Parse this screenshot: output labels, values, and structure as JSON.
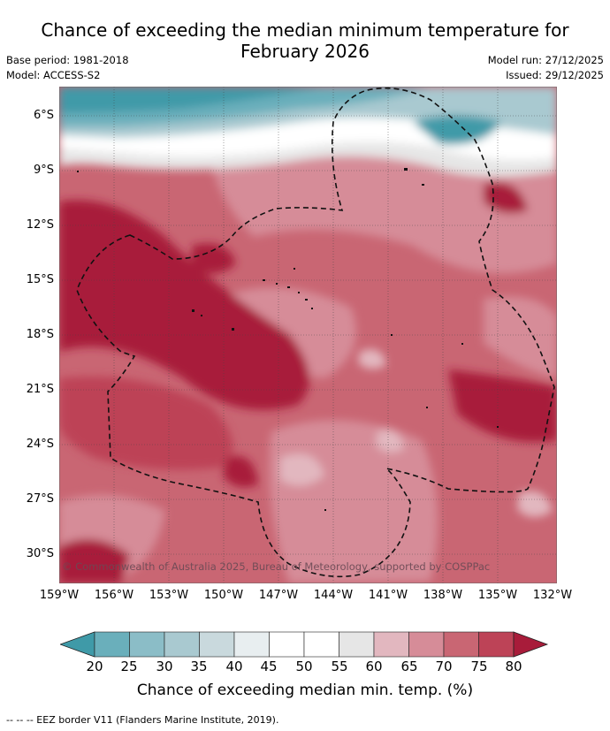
{
  "title_line1": "Chance of exceeding the median minimum temperature for",
  "title_line2": "February 2026",
  "base_period": "Base period: 1981-2018",
  "model": "Model: ACCESS-S2",
  "model_run": "Model run: 27/12/2025",
  "issued": "Issued: 29/12/2025",
  "lat_labels": [
    "6°S",
    "9°S",
    "12°S",
    "15°S",
    "18°S",
    "21°S",
    "24°S",
    "27°S",
    "30°S"
  ],
  "lon_labels": [
    "159°W",
    "156°W",
    "153°W",
    "150°W",
    "147°W",
    "144°W",
    "141°W",
    "138°W",
    "135°W",
    "132°W"
  ],
  "colorbar_ticks": [
    "20",
    "25",
    "30",
    "35",
    "40",
    "45",
    "50",
    "55",
    "60",
    "65",
    "70",
    "75",
    "80"
  ],
  "colorbar_colors": [
    "#3f9aa8",
    "#6aafbb",
    "#8bbdc7",
    "#a9c9d0",
    "#c9d9dd",
    "#e8eef0",
    "#ffffff",
    "#ffffff",
    "#e6e6e6",
    "#e2b7bf",
    "#d68c98",
    "#c96673",
    "#bd4357",
    "#a81c3a"
  ],
  "colorbar_label": "Chance of exceeding median min. temp. (%)",
  "copyright": "© Commonwealth of Australia 2025, Bureau of Meteorology, supported by COSPPac",
  "footer_legend": "--  --  -- EEZ border V11 (Flanders Marine Institute, 2019)."
}
